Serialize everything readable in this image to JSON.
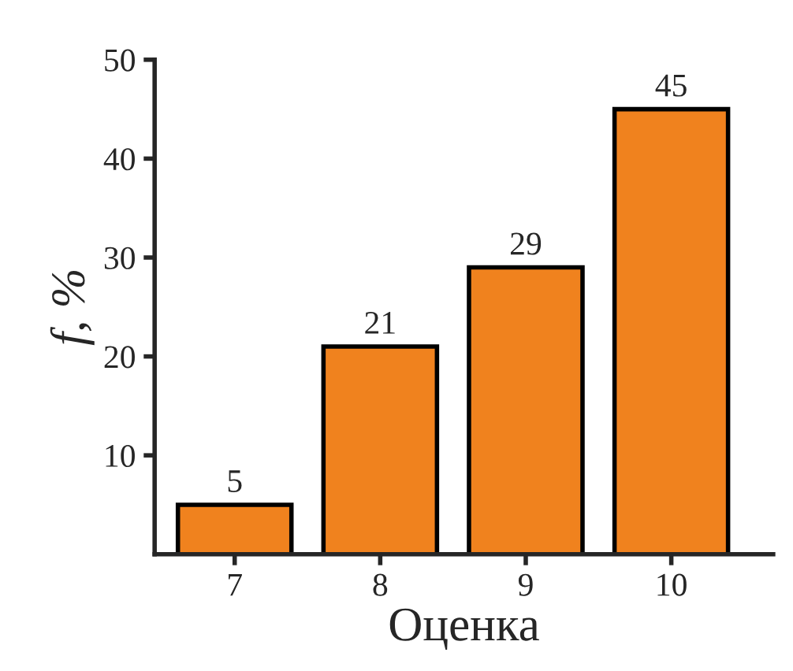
{
  "chart_data": {
    "type": "bar",
    "xlabel": "Оценка",
    "ylabel": "f, %",
    "categories": [
      "7",
      "8",
      "9",
      "10"
    ],
    "values": [
      5,
      21,
      29,
      45
    ],
    "color": "#f0821e",
    "ylim": [
      0,
      50
    ],
    "yticks": [
      10,
      20,
      30,
      40,
      50
    ],
    "grid": false,
    "data_labels": true
  }
}
